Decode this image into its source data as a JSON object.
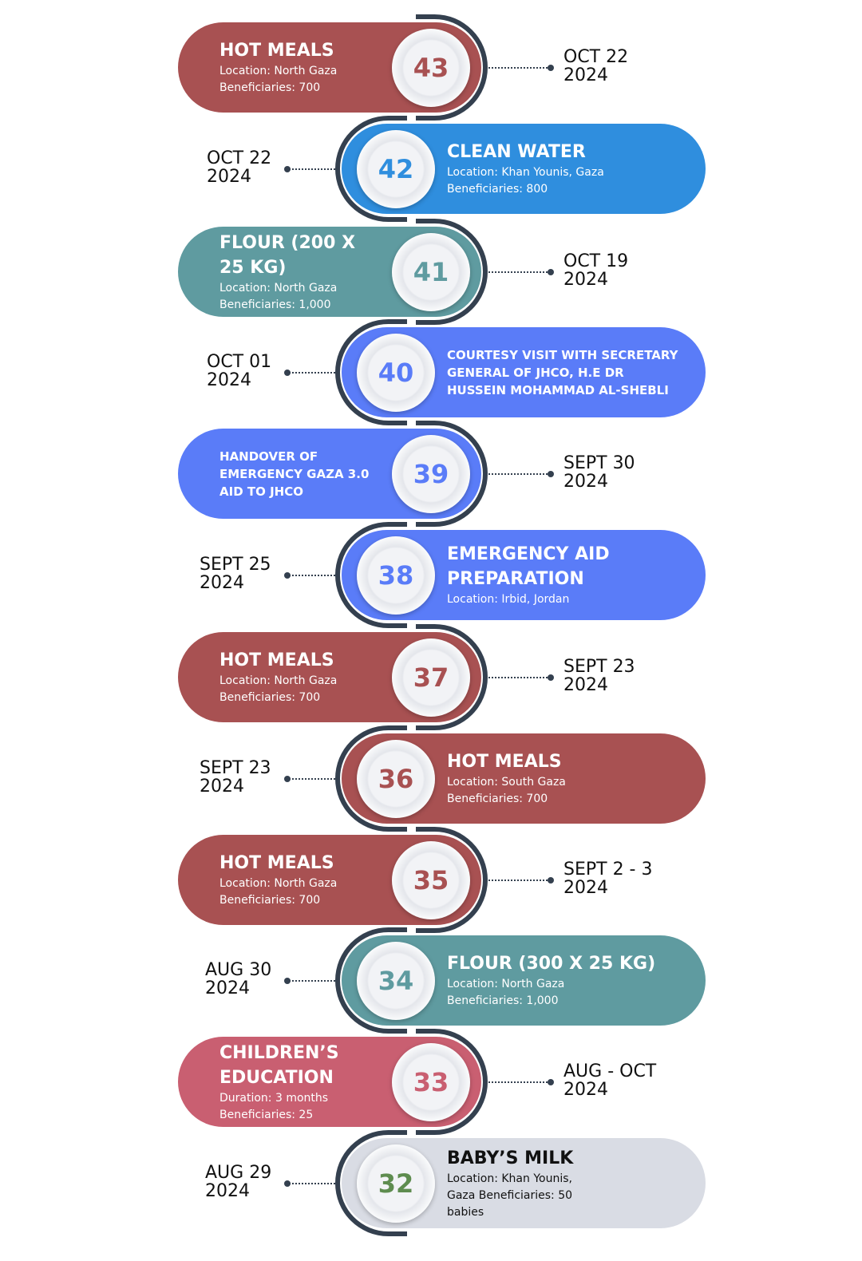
{
  "colors": {
    "line": "#34404f",
    "red": "#a85152",
    "blue": "#2f8ede",
    "teal": "#5f9ba0",
    "indigo": "#5a7cf8",
    "pink": "#c95f71",
    "grey": "#d9dce4",
    "green": "#5e8c4f"
  },
  "items": [
    {
      "num": "43",
      "title": "HOT MEALS",
      "lines": [
        "Location: North Gaza",
        "Beneficiaries: 700"
      ],
      "date1": "OCT 22",
      "date2": "2024",
      "color": "#a85152",
      "numColor": "#a85152"
    },
    {
      "num": "42",
      "title": "CLEAN WATER",
      "lines": [
        "Location: Khan Younis, Gaza",
        "Beneficiaries: 800"
      ],
      "date1": "OCT 22",
      "date2": "2024",
      "color": "#2f8ede",
      "numColor": "#2f8ede"
    },
    {
      "num": "41",
      "title": "FLOUR (200 X 25 KG)",
      "lines": [
        "Location: North Gaza",
        "Beneficiaries: 1,000"
      ],
      "date1": "OCT 19",
      "date2": "2024",
      "color": "#5f9ba0",
      "numColor": "#5f9ba0"
    },
    {
      "num": "40",
      "title": "COURTESY VISIT WITH SECRETARY GENERAL OF JHCO, H.E DR HUSSEIN MOHAMMAD AL-SHEBLI",
      "lines": [],
      "date1": "OCT 01",
      "date2": "2024",
      "color": "#5a7cf8",
      "numColor": "#5a7cf8"
    },
    {
      "num": "39",
      "title": "HANDOVER OF EMERGENCY GAZA 3.0 AID TO JHCO",
      "lines": [],
      "date1": "SEPT 30",
      "date2": "2024",
      "color": "#5a7cf8",
      "numColor": "#5a7cf8"
    },
    {
      "num": "38",
      "title": "EMERGENCY AID PREPARATION",
      "lines": [
        "Location: Irbid, Jordan"
      ],
      "date1": "SEPT 25",
      "date2": "2024",
      "color": "#5a7cf8",
      "numColor": "#5a7cf8"
    },
    {
      "num": "37",
      "title": "HOT MEALS",
      "lines": [
        "Location: North Gaza",
        "Beneficiaries: 700"
      ],
      "date1": "SEPT 23",
      "date2": "2024",
      "color": "#a85152",
      "numColor": "#a85152"
    },
    {
      "num": "36",
      "title": "HOT MEALS",
      "lines": [
        "Location: South Gaza",
        "Beneficiaries: 700"
      ],
      "date1": "SEPT 23",
      "date2": "2024",
      "color": "#a85152",
      "numColor": "#a85152"
    },
    {
      "num": "35",
      "title": "HOT MEALS",
      "lines": [
        "Location: North Gaza",
        "Beneficiaries: 700"
      ],
      "date1": "SEPT 2 - 3",
      "date2": "2024",
      "color": "#a85152",
      "numColor": "#a85152"
    },
    {
      "num": "34",
      "title": "FLOUR (300 X 25 KG)",
      "lines": [
        "Location: North Gaza",
        "Beneficiaries: 1,000"
      ],
      "date1": "AUG 30",
      "date2": "2024",
      "color": "#5f9ba0",
      "numColor": "#5f9ba0"
    },
    {
      "num": "33",
      "title": "CHILDREN’S EDUCATION",
      "lines": [
        "Duration: 3 months",
        "Beneficiaries: 25"
      ],
      "date1": "AUG - OCT",
      "date2": "2024",
      "color": "#c95f71",
      "numColor": "#c95f71"
    },
    {
      "num": "32",
      "title": "BABY’S MILK",
      "lines": [
        "Location: Khan Younis,",
        "Gaza Beneficiaries: 50",
        "babies"
      ],
      "date1": "AUG 29",
      "date2": "2024",
      "color": "#d9dce4",
      "numColor": "#5e8c4f",
      "textColor": "#111"
    }
  ]
}
